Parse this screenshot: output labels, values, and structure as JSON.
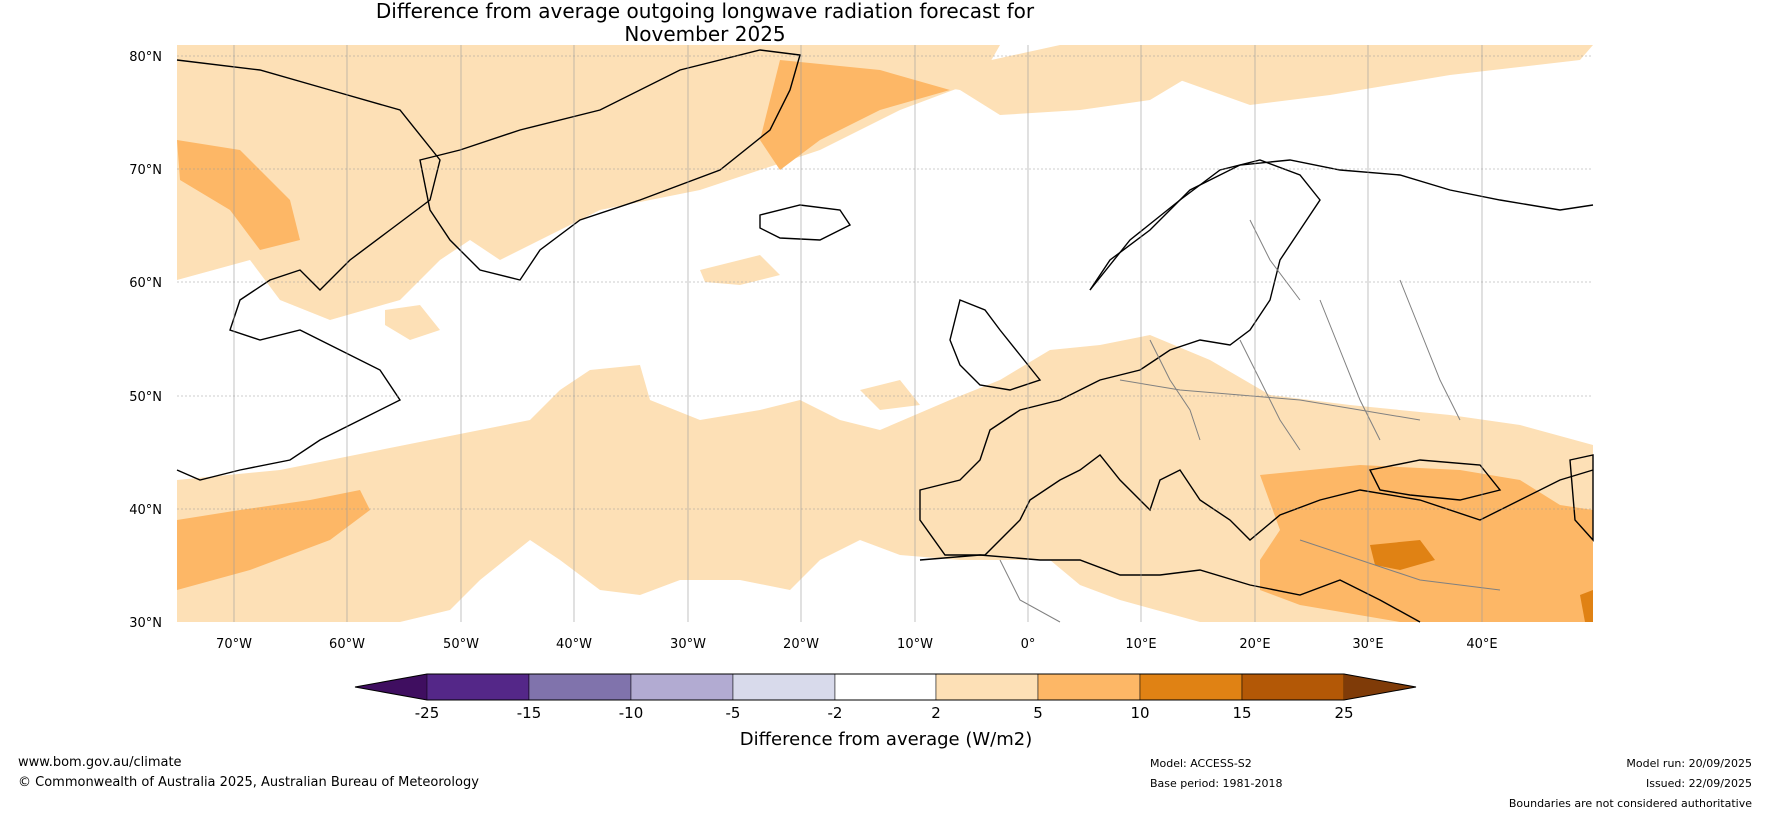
{
  "title_line1": "Difference from average outgoing longwave radiation forecast for",
  "title_line2": "November 2025",
  "map": {
    "lat_labels": [
      "80°N",
      "70°N",
      "60°N",
      "50°N",
      "40°N",
      "30°N"
    ],
    "lon_labels": [
      "70°W",
      "60°W",
      "50°W",
      "40°W",
      "30°W",
      "20°W",
      "10°W",
      "0°",
      "10°E",
      "20°E",
      "30°E",
      "40°E"
    ],
    "colors": {
      "light": "#fde0b6",
      "mid": "#fdb766",
      "dark": "#e08214",
      "coast": "#000000",
      "border": "#808080"
    }
  },
  "colorbar": {
    "label": "Difference from average (W/m2)",
    "ticks": [
      "-25",
      "-15",
      "-10",
      "-5",
      "-2",
      "2",
      "5",
      "10",
      "15",
      "25"
    ],
    "colors": [
      "#3f0e60",
      "#542788",
      "#8073ac",
      "#b2abd2",
      "#d8daeb",
      "#ffffff",
      "#fde0b6",
      "#fdb766",
      "#e08214",
      "#b35806",
      "#7f3b08"
    ]
  },
  "footer": {
    "website": "www.bom.gov.au/climate",
    "copyright": "© Commonwealth of Australia 2025, Australian Bureau of Meteorology",
    "model": "Model: ACCESS-S2",
    "base_period": "Base period: 1981-2018",
    "model_run": "Model run: 20/09/2025",
    "issued": "Issued: 22/09/2025",
    "disclaimer": "Boundaries are not considered authoritative"
  }
}
